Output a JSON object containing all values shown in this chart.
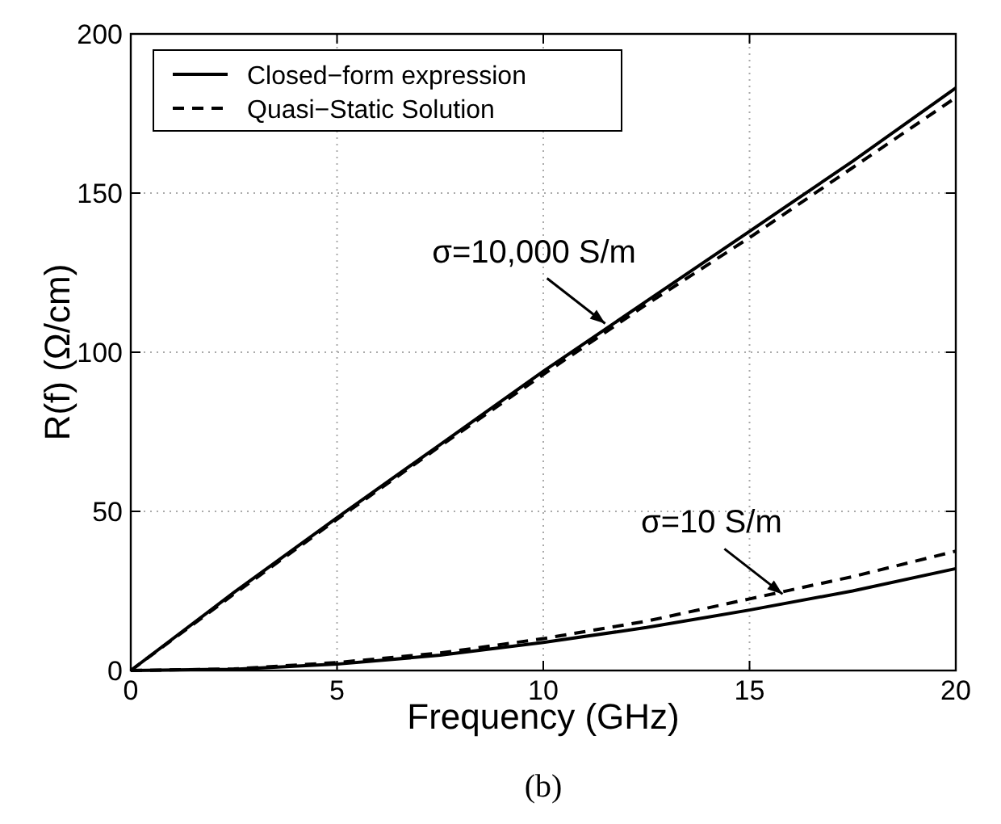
{
  "chart_data": {
    "type": "line",
    "xlabel": "Frequency (GHz)",
    "ylabel": "R(f) (Ω/cm)",
    "xlim": [
      0,
      20
    ],
    "ylim": [
      0,
      200
    ],
    "xticks": [
      0,
      5,
      10,
      15,
      20
    ],
    "yticks": [
      0,
      50,
      100,
      150,
      200
    ],
    "grid": true,
    "legend": "top left",
    "marker": "none",
    "series": [
      {
        "name": "Closed−form expression",
        "color": "#000000",
        "line_style": "solid",
        "x": [
          0,
          2.5,
          5,
          7.5,
          10,
          12.5,
          15,
          17.5,
          20
        ],
        "values": [
          0,
          24.5,
          48,
          71,
          94,
          116,
          138,
          160,
          183
        ]
      },
      {
        "name": "Quasi−Static Solution",
        "color": "#000000",
        "line_style": "dashed",
        "x": [
          0,
          2.5,
          5,
          7.5,
          10,
          12.5,
          15,
          17.5,
          20
        ],
        "values": [
          0,
          24,
          47.5,
          70.5,
          93,
          115,
          136,
          158,
          180
        ]
      },
      {
        "color": "#000000",
        "line_style": "solid",
        "x": [
          0,
          2.5,
          5,
          7.5,
          10,
          12.5,
          15,
          17.5,
          20
        ],
        "values": [
          0,
          0.4,
          2,
          4.8,
          8.8,
          13.5,
          19,
          25,
          32
        ]
      },
      {
        "color": "#000000",
        "line_style": "dashed",
        "x": [
          0,
          2.5,
          5,
          7.5,
          10,
          12.5,
          15,
          17.5,
          20
        ],
        "values": [
          0,
          0.5,
          2.5,
          5.5,
          10,
          15.5,
          22.5,
          29.5,
          37.5
        ]
      }
    ],
    "annotations": [
      {
        "text": "σ=10,000 S/m",
        "x": 11.5,
        "y": 109
      },
      {
        "text": "σ=10 S/m",
        "x": 15.8,
        "y": 24
      },
      "(b)"
    ]
  }
}
